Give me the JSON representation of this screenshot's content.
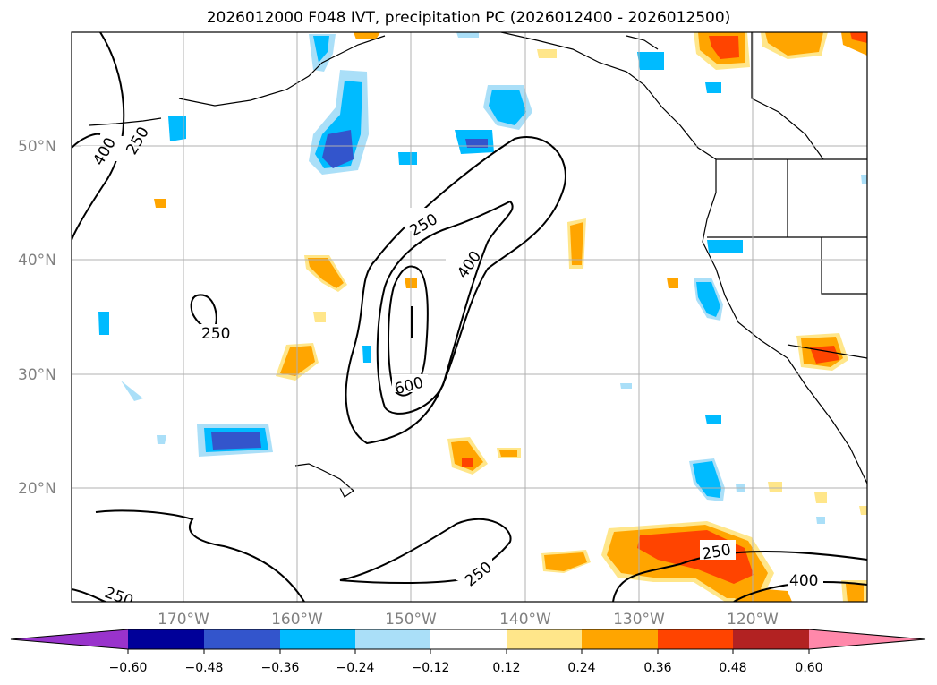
{
  "title": "2026012000 F048 IVT, precipitation PC (2026012400 - 2026012500)",
  "lat_labels": [
    "50°N",
    "40°N",
    "30°N",
    "20°N"
  ],
  "lon_labels": [
    "170°W",
    "160°W",
    "150°W",
    "140°W",
    "130°W",
    "120°W"
  ],
  "contour_labels": [
    "400",
    "250",
    "250",
    "400",
    "250",
    "600",
    "250",
    "400",
    "250",
    "250"
  ],
  "colorbar": {
    "ticks": [
      "−0.60",
      "−0.48",
      "−0.36",
      "−0.24",
      "−0.12",
      "0.12",
      "0.24",
      "0.36",
      "0.48",
      "0.60"
    ],
    "colors": [
      "#9933cc",
      "#000099",
      "#3355cc",
      "#00bbff",
      "#aadff8",
      "#ffffff",
      "#ffe68a",
      "#ffa500",
      "#ff4400",
      "#b22222",
      "#ff88aa"
    ]
  },
  "colors": {
    "grid": "#b0b0b0",
    "tick_label": "#808080",
    "contour": "#000000"
  }
}
